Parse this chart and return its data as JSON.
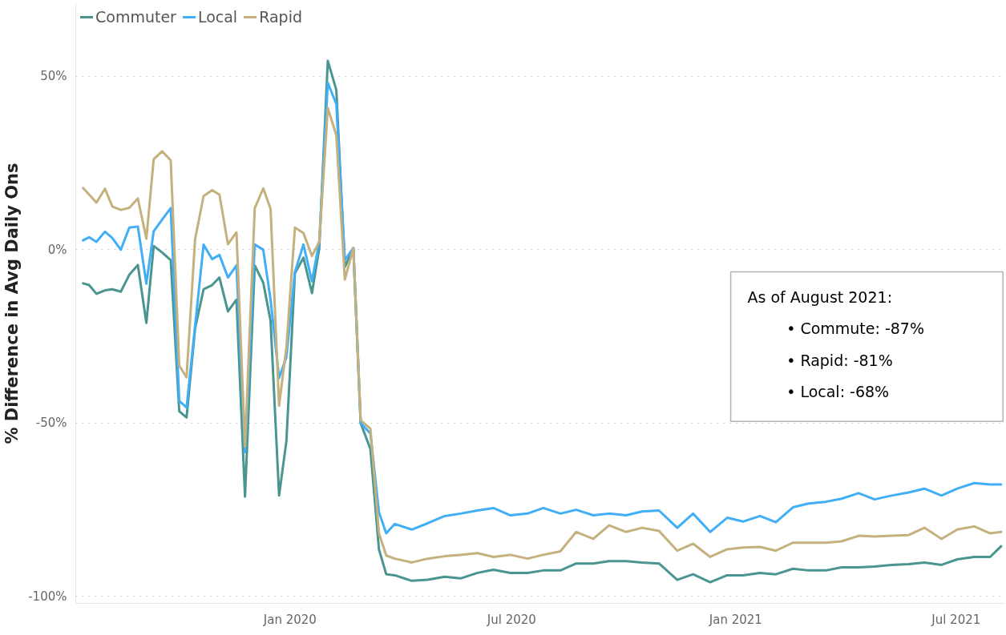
{
  "chart_data": {
    "type": "line",
    "ylabel": "% Difference in Avg Daily Ons",
    "x": [
      "2019-07-15",
      "2019-07-20",
      "2019-07-26",
      "2019-08-02",
      "2019-08-08",
      "2019-08-15",
      "2019-08-22",
      "2019-08-29",
      "2019-09-05",
      "2019-09-11",
      "2019-09-18",
      "2019-09-25",
      "2019-10-02",
      "2019-10-08",
      "2019-10-15",
      "2019-10-22",
      "2019-10-29",
      "2019-11-04",
      "2019-11-11",
      "2019-11-18",
      "2019-11-25",
      "2019-12-03",
      "2019-12-10",
      "2019-12-16",
      "2019-12-23",
      "2019-12-29",
      "2020-01-05",
      "2020-01-12",
      "2020-01-19",
      "2020-01-25",
      "2020-02-01",
      "2020-02-08",
      "2020-02-15",
      "2020-02-22",
      "2020-02-28",
      "2020-03-07",
      "2020-03-14",
      "2020-03-20",
      "2020-03-27",
      "2020-04-10",
      "2020-04-23",
      "2020-05-07",
      "2020-05-20",
      "2020-06-03",
      "2020-06-16",
      "2020-06-30",
      "2020-07-14",
      "2020-07-27",
      "2020-08-10",
      "2020-08-23",
      "2020-09-06",
      "2020-09-19",
      "2020-10-03",
      "2020-10-16",
      "2020-10-30",
      "2020-11-14",
      "2020-11-27",
      "2020-12-11",
      "2020-12-25",
      "2021-01-07",
      "2021-01-21",
      "2021-02-03",
      "2021-02-17",
      "2021-03-02",
      "2021-03-16",
      "2021-03-29",
      "2021-04-12",
      "2021-04-25",
      "2021-05-09",
      "2021-05-23",
      "2021-06-05",
      "2021-06-19",
      "2021-07-02",
      "2021-07-16",
      "2021-07-29",
      "2021-08-07"
    ],
    "series": [
      {
        "name": "Commuter",
        "color": "#4a9590",
        "values": [
          -9.7,
          -10.2,
          -12.7,
          -11.7,
          -11.4,
          -12.1,
          -7.2,
          -4.4,
          -21.1,
          1.1,
          -0.8,
          -3.0,
          -46.6,
          -48.4,
          -22.7,
          -11.4,
          -10.2,
          -8,
          -17.8,
          -14.4,
          -71.2,
          -4.5,
          -9.5,
          -20.5,
          -70.9,
          -55.2,
          -6.8,
          -2.3,
          -12.5,
          0.5,
          54.5,
          46.1,
          -5,
          0.5,
          -50,
          -57.5,
          -86.4,
          -93.6,
          -93.9,
          -95.5,
          -95.2,
          -94.3,
          -94.8,
          -93.2,
          -92.3,
          -93.2,
          -93.2,
          -92.5,
          -92.5,
          -90.5,
          -90.5,
          -89.8,
          -89.8,
          -90.2,
          -90.5,
          -95.2,
          -93.6,
          -95.9,
          -93.9,
          -93.9,
          -93.2,
          -93.6,
          -92,
          -92.5,
          -92.5,
          -91.6,
          -91.6,
          -91.4,
          -90.9,
          -90.7,
          -90.2,
          -90.9,
          -89.3,
          -88.6,
          -88.6,
          -85.5
        ]
      },
      {
        "name": "Local",
        "color": "#41aef5",
        "values": [
          2.7,
          3.6,
          2.3,
          5.2,
          3.4,
          0,
          6.4,
          6.7,
          -9.8,
          5.3,
          8.7,
          12.0,
          -43.6,
          -45.5,
          -22,
          1.5,
          -2.7,
          -1.5,
          -8,
          -4.5,
          -58.4,
          1.5,
          0,
          -14.4,
          -37,
          -31,
          -6.4,
          1.5,
          -9.1,
          2.3,
          48.2,
          42,
          -3,
          0.5,
          -50,
          -53,
          -75.7,
          -81.8,
          -79.1,
          -80.7,
          -78.9,
          -76.8,
          -76.1,
          -75.2,
          -74.5,
          -76.6,
          -76.1,
          -74.5,
          -76.1,
          -75,
          -76.6,
          -76.1,
          -76.6,
          -75.5,
          -75.2,
          -80.2,
          -76.1,
          -81.4,
          -77.3,
          -78.4,
          -76.8,
          -78.6,
          -74.3,
          -73.2,
          -72.7,
          -71.8,
          -70.2,
          -72,
          -70.9,
          -70,
          -68.9,
          -70.9,
          -68.9,
          -67.3,
          -67.7,
          -67.7
        ]
      },
      {
        "name": "Rapid",
        "color": "#c4b17e",
        "values": [
          17.8,
          15.9,
          13.6,
          17.6,
          12.5,
          11.5,
          12.1,
          14.8,
          3.2,
          26.1,
          28.4,
          25.8,
          -33.4,
          -36.8,
          3.0,
          15.5,
          17.2,
          15.9,
          1.6,
          5.0,
          -56.8,
          12.0,
          17.7,
          11.8,
          -45,
          -28,
          6.4,
          4.8,
          -1.8,
          2.3,
          40.9,
          33,
          -8.6,
          0.5,
          -49.2,
          -51.6,
          -81.8,
          -88.2,
          -89.1,
          -90.2,
          -89.1,
          -88.4,
          -88,
          -87.5,
          -88.6,
          -88,
          -89.1,
          -88,
          -87,
          -81.4,
          -83.4,
          -79.5,
          -81.4,
          -80.2,
          -81.1,
          -86.8,
          -84.8,
          -88.6,
          -86.4,
          -85.9,
          -85.7,
          -86.8,
          -84.5,
          -84.5,
          -84.5,
          -84.1,
          -82.5,
          -82.7,
          -82.5,
          -82.3,
          -80.2,
          -83.4,
          -80.7,
          -79.8,
          -81.8,
          -81.4
        ]
      }
    ],
    "xlim": [
      "2019-07-09",
      "2021-08-10"
    ],
    "xticks": [
      {
        "value": "2020-01-01",
        "label": "Jan 2020"
      },
      {
        "value": "2020-07-01",
        "label": "Jul 2020"
      },
      {
        "value": "2021-01-01",
        "label": "Jan 2021"
      },
      {
        "value": "2021-07-01",
        "label": "Jul 2021"
      }
    ],
    "ylim": [
      -102,
      71
    ],
    "yticks": [
      {
        "value": -100,
        "label": "-100%"
      },
      {
        "value": -50,
        "label": "-50%"
      },
      {
        "value": 0,
        "label": "0%"
      },
      {
        "value": 50,
        "label": "50%"
      }
    ],
    "grid": "y",
    "legend": "top left",
    "annotations": [
      "As of August 2021:",
      "• Commute: -87%",
      "• Rapid: -81%",
      "• Local: -68%"
    ]
  }
}
